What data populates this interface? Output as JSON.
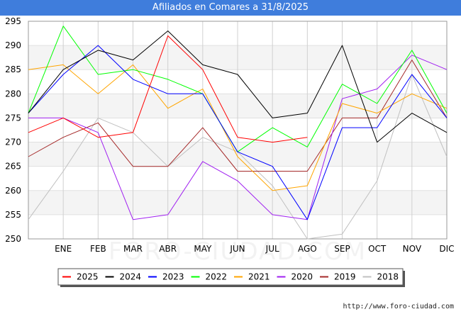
{
  "title": "Afiliados en Comares a 31/8/2025",
  "footer_url": "http://www.foro-ciudad.com",
  "watermark": "FORO-CIUDAD.COM",
  "chart_data": {
    "type": "line",
    "title": "Afiliados en Comares a 31/8/2025",
    "xlabel": "",
    "ylabel": "",
    "categories": [
      "",
      "ENE",
      "FEB",
      "MAR",
      "ABR",
      "MAY",
      "JUN",
      "JUL",
      "AGO",
      "SEP",
      "OCT",
      "NOV",
      "DIC"
    ],
    "ylim": [
      250,
      295
    ],
    "yticks": [
      250,
      255,
      260,
      265,
      270,
      275,
      280,
      285,
      290,
      295
    ],
    "grid": true,
    "legend_position": "bottom",
    "series": [
      {
        "name": "2025",
        "color": "#ff0000",
        "values": [
          272,
          275,
          271,
          272,
          292,
          285,
          271,
          270,
          271,
          null,
          null,
          null,
          null
        ]
      },
      {
        "name": "2024",
        "color": "#000000",
        "values": [
          276,
          285,
          289,
          287,
          293,
          286,
          284,
          275,
          276,
          290,
          270,
          276,
          272
        ]
      },
      {
        "name": "2023",
        "color": "#0000ff",
        "values": [
          276,
          284,
          290,
          283,
          280,
          280,
          268,
          265,
          254,
          273,
          273,
          284,
          275
        ]
      },
      {
        "name": "2022",
        "color": "#00ff00",
        "values": [
          276,
          294,
          284,
          285,
          283,
          280,
          268,
          273,
          269,
          282,
          278,
          289,
          276
        ]
      },
      {
        "name": "2021",
        "color": "#ffa500",
        "values": [
          285,
          286,
          280,
          286,
          277,
          281,
          267,
          260,
          261,
          278,
          276,
          280,
          277
        ]
      },
      {
        "name": "2020",
        "color": "#a020f0",
        "values": [
          275,
          275,
          272,
          254,
          255,
          266,
          262,
          255,
          254,
          279,
          281,
          288,
          285
        ]
      },
      {
        "name": "2019",
        "color": "#a52a2a",
        "values": [
          267,
          271,
          274,
          265,
          265,
          273,
          264,
          264,
          264,
          275,
          275,
          287,
          275
        ]
      },
      {
        "name": "2018",
        "color": "#c0c0c0",
        "values": [
          254,
          264,
          275,
          272,
          265,
          271,
          268,
          261,
          250,
          251,
          262,
          284,
          267
        ]
      }
    ]
  }
}
